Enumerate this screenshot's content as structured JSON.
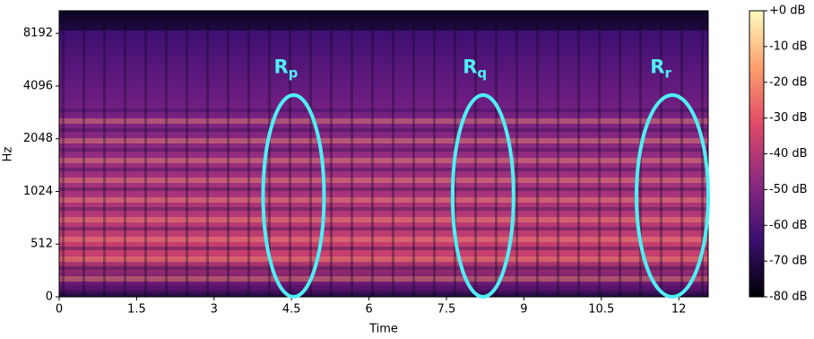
{
  "chart_data": {
    "type": "spectrogram",
    "xlabel": "Time",
    "ylabel": "Hz",
    "xlim": [
      0,
      12.57
    ],
    "xticks": [
      0,
      1.5,
      3,
      4.5,
      6,
      7.5,
      9,
      10.5,
      12
    ],
    "yscale": "symlog",
    "linthresh": 512,
    "ylim": [
      0,
      11025
    ],
    "yticks": [
      0,
      512,
      1024,
      2048,
      4096,
      8192
    ],
    "colorbar": {
      "clim": [
        -80,
        0
      ],
      "ticks": [
        {
          "value": 0,
          "label": "+0 dB"
        },
        {
          "value": -10,
          "label": "-10 dB"
        },
        {
          "value": -20,
          "label": "-20 dB"
        },
        {
          "value": -30,
          "label": "-30 dB"
        },
        {
          "value": -40,
          "label": "-40 dB"
        },
        {
          "value": -50,
          "label": "-50 dB"
        },
        {
          "value": -60,
          "label": "-60 dB"
        },
        {
          "value": -70,
          "label": "-70 dB"
        },
        {
          "value": -80,
          "label": "-80 dB"
        }
      ],
      "colormap": [
        "#000004",
        "#3b0f70",
        "#8c2981",
        "#de4968",
        "#fe9f6d",
        "#fcfdbf"
      ]
    },
    "annotations": [
      {
        "text": "R",
        "subscript": "p",
        "label_x": 4.53,
        "label_y": 5200,
        "x": [
          3.95,
          5.13
        ],
        "y": [
          0,
          3640
        ]
      },
      {
        "text": "R",
        "subscript": "q",
        "label_x": 8.19,
        "label_y": 5200,
        "x": [
          7.62,
          8.8
        ],
        "y": [
          0,
          3640
        ]
      },
      {
        "text": "R",
        "subscript": "r",
        "label_x": 11.79,
        "label_y": 5200,
        "x": [
          11.18,
          12.57
        ],
        "y": [
          0,
          3640
        ]
      }
    ],
    "annotation_color": "#4ef0f5"
  }
}
